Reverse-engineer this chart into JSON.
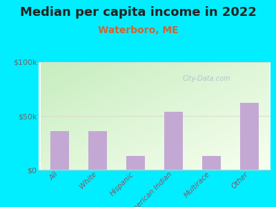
{
  "title": "Median per capita income in 2022",
  "subtitle": "Waterboro, ME",
  "categories": [
    "All",
    "White",
    "Hispanic",
    "American Indian",
    "Multirace",
    "Other"
  ],
  "values": [
    36000,
    36000,
    13000,
    54000,
    13000,
    62000
  ],
  "bar_color": "#c4a8d4",
  "background_color": "#00EEFF",
  "plot_bg_color_top_left": "#c8e8c0",
  "plot_bg_color_bottom_right": "#f8fff0",
  "ylim": [
    0,
    100000
  ],
  "yticks": [
    0,
    50000,
    100000
  ],
  "ytick_labels": [
    "$0",
    "$50k",
    "$100k"
  ],
  "title_fontsize": 13,
  "subtitle_fontsize": 10,
  "subtitle_color": "#cc6633",
  "tick_label_color": "#885566",
  "ytick_label_color": "#666666",
  "watermark": "City-Data.com",
  "watermark_color": "#aabbcc",
  "grid_color": "#ddddcc"
}
